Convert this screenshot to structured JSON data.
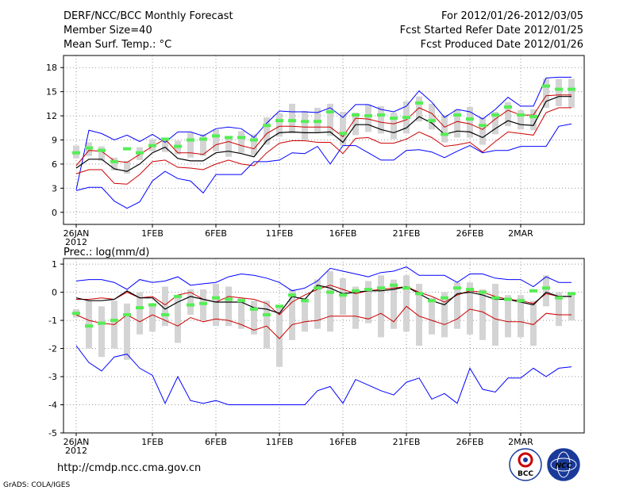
{
  "header": {
    "left_title": "DERF/NCC/BCC Monthly Forecast",
    "left_member": "Member Size=40",
    "left_var": "Mean Surf. Temp.: °C",
    "right_period": "For 2012/01/26-2012/03/05",
    "right_refer": "Fcst Started Refer Date 2012/01/25",
    "right_produced": "Fcst Produced Date 2012/01/26"
  },
  "precip_label": "Prec.: log(mm/d)",
  "footer": {
    "url": "http://cmdp.ncc.cma.gov.cn",
    "grads": "GrADS: COLA/IGES",
    "logo_bcc": "BCC",
    "logo_ncc": "NCC"
  },
  "x_axis": {
    "ticks": [
      "26JAN",
      "1FEB",
      "6FEB",
      "11FEB",
      "16FEB",
      "21FEB",
      "26FEB",
      "2MAR"
    ],
    "tick_days": [
      0,
      6,
      11,
      16,
      21,
      26,
      31,
      35
    ],
    "year_label": "2012",
    "n_days": 40
  },
  "colors": {
    "upper": "#0000ff",
    "lower_env": "#0000ff",
    "spread": "#cc0000",
    "mean": "#000000",
    "box": "#d4d4d4",
    "member": "#55ee55",
    "grid": "#999999"
  },
  "chart_data": [
    {
      "type": "line",
      "title": "Mean Surf. Temp.: °C",
      "ylim": [
        -1.5,
        19.5
      ],
      "yticks": [
        0,
        3,
        6,
        9,
        12,
        15,
        18
      ],
      "series": [
        {
          "name": "max",
          "values": [
            2.8,
            10.2,
            9.8,
            9.0,
            9.6,
            8.8,
            9.7,
            8.7,
            10.0,
            10.0,
            9.5,
            10.4,
            10.6,
            10.4,
            9.3,
            11.1,
            12.6,
            12.5,
            12.5,
            12.4,
            13.0,
            11.8,
            13.4,
            13.4,
            12.8,
            12.5,
            13.2,
            15.1,
            13.7,
            11.8,
            12.8,
            12.5,
            11.6,
            12.8,
            14.3,
            13.2,
            13.2,
            16.7,
            16.8,
            16.8
          ]
        },
        {
          "name": "upper_spread",
          "values": [
            5.8,
            7.7,
            7.6,
            6.4,
            6.2,
            7.2,
            8.2,
            9.1,
            7.4,
            7.4,
            7.2,
            8.4,
            8.8,
            8.3,
            7.9,
            9.8,
            10.7,
            10.7,
            10.6,
            10.6,
            10.6,
            9.4,
            11.7,
            11.6,
            11.2,
            11.0,
            11.5,
            13.0,
            12.3,
            10.6,
            11.3,
            11.0,
            10.3,
            11.6,
            12.7,
            12.1,
            12.1,
            14.5,
            14.6,
            14.6
          ]
        },
        {
          "name": "mean",
          "values": [
            5.5,
            6.6,
            6.6,
            5.4,
            5.1,
            6.0,
            7.4,
            8.1,
            6.7,
            6.4,
            6.4,
            7.4,
            7.6,
            7.3,
            6.9,
            8.9,
            9.9,
            10.0,
            9.9,
            9.9,
            10.0,
            8.7,
            10.9,
            10.9,
            10.3,
            9.9,
            10.5,
            11.9,
            11.1,
            9.7,
            10.1,
            10.0,
            9.3,
            10.4,
            11.4,
            10.9,
            10.8,
            13.8,
            14.4,
            14.4
          ]
        },
        {
          "name": "lower_spread",
          "values": [
            4.8,
            5.3,
            5.3,
            3.6,
            3.5,
            4.7,
            6.3,
            6.5,
            5.6,
            5.5,
            5.3,
            6.0,
            6.5,
            6.0,
            5.8,
            7.4,
            8.6,
            8.9,
            8.9,
            8.7,
            8.7,
            7.3,
            9.2,
            9.3,
            8.6,
            8.6,
            9.1,
            10.0,
            9.3,
            8.2,
            8.4,
            8.7,
            7.5,
            8.8,
            10.0,
            9.8,
            9.6,
            12.4,
            13.0,
            13.0
          ]
        },
        {
          "name": "min",
          "values": [
            2.7,
            3.1,
            3.1,
            1.4,
            0.5,
            1.3,
            3.9,
            5.1,
            4.2,
            3.9,
            2.4,
            4.7,
            4.7,
            4.7,
            6.3,
            6.3,
            6.5,
            7.4,
            7.3,
            8.2,
            6.0,
            8.3,
            8.3,
            7.4,
            6.5,
            6.5,
            7.7,
            7.8,
            7.5,
            6.8,
            7.6,
            8.3,
            7.4,
            7.7,
            7.7,
            8.2,
            8.2,
            8.2,
            10.7,
            11.0
          ]
        },
        {
          "name": "members",
          "values": [
            7.4,
            8.0,
            7.7,
            6.3,
            7.9,
            7.4,
            8.3,
            9.1,
            8.2,
            9.0,
            9.1,
            9.5,
            9.3,
            9.3,
            9.0,
            10.8,
            11.4,
            11.4,
            11.3,
            11.3,
            12.5,
            9.8,
            12.1,
            12.0,
            12.1,
            11.7,
            11.8,
            13.6,
            11.4,
            9.7,
            12.1,
            11.6,
            10.8,
            12.1,
            13.1,
            12.1,
            11.9,
            15.7,
            15.3,
            15.3
          ]
        }
      ],
      "box_ranges": [
        [
          6.7,
          8.3
        ],
        [
          7.0,
          8.7
        ],
        [
          6.4,
          8.2
        ],
        [
          5.2,
          6.8
        ],
        [
          4.8,
          6.4
        ],
        [
          6.5,
          8.1
        ],
        [
          7.6,
          9.1
        ],
        [
          7.5,
          9.3
        ],
        [
          7.2,
          8.9
        ],
        [
          6.8,
          9.9
        ],
        [
          7.0,
          9.7
        ],
        [
          7.6,
          10.3
        ],
        [
          6.9,
          9.3
        ],
        [
          7.4,
          10.1
        ],
        [
          7.1,
          9.7
        ],
        [
          8.4,
          11.8
        ],
        [
          9.4,
          12.3
        ],
        [
          9.8,
          13.5
        ],
        [
          9.0,
          12.6
        ],
        [
          10.0,
          13.0
        ],
        [
          9.5,
          13.5
        ],
        [
          8.3,
          12.5
        ],
        [
          9.6,
          12.4
        ],
        [
          10.0,
          13.4
        ],
        [
          9.8,
          13.2
        ],
        [
          9.1,
          12.4
        ],
        [
          9.8,
          13.8
        ],
        [
          11.3,
          14.4
        ],
        [
          10.3,
          13.5
        ],
        [
          8.7,
          12.1
        ],
        [
          9.3,
          12.8
        ],
        [
          9.3,
          13.1
        ],
        [
          8.4,
          11.8
        ],
        [
          9.7,
          12.5
        ],
        [
          10.7,
          13.7
        ],
        [
          10.3,
          12.7
        ],
        [
          10.2,
          12.8
        ],
        [
          13.0,
          16.6
        ],
        [
          13.2,
          16.6
        ],
        [
          13.0,
          16.6
        ]
      ]
    },
    {
      "type": "line",
      "title": "Prec.: log(mm/d)",
      "ylim": [
        -5,
        1.2
      ],
      "yticks": [
        -5,
        -4,
        -3,
        -2,
        -1,
        0,
        1
      ],
      "series": [
        {
          "name": "max",
          "values": [
            0.4,
            0.45,
            0.45,
            0.35,
            0.1,
            0.45,
            0.35,
            0.4,
            0.55,
            0.25,
            0.3,
            0.35,
            0.55,
            0.65,
            0.6,
            0.5,
            0.35,
            0.05,
            0.15,
            0.4,
            0.85,
            0.75,
            0.65,
            0.55,
            0.7,
            0.75,
            0.9,
            0.6,
            0.6,
            0.6,
            0.35,
            0.65,
            0.65,
            0.5,
            0.45,
            0.45,
            0.2,
            0.55,
            0.35,
            0.35
          ]
        },
        {
          "name": "upper_spread",
          "values": [
            -0.25,
            -0.25,
            -0.2,
            -0.25,
            0.0,
            -0.2,
            -0.15,
            -0.45,
            -0.1,
            0.0,
            -0.25,
            -0.35,
            -0.15,
            -0.2,
            -0.25,
            -0.4,
            -0.8,
            -0.35,
            -0.1,
            0.1,
            0.25,
            0.1,
            -0.05,
            0.05,
            0.1,
            0.15,
            0.2,
            0.0,
            -0.15,
            -0.35,
            -0.1,
            0.05,
            0.0,
            -0.15,
            -0.25,
            -0.3,
            -0.4,
            -0.05,
            -0.15,
            -0.15
          ]
        },
        {
          "name": "mean",
          "values": [
            -0.2,
            -0.3,
            -0.3,
            -0.25,
            0.05,
            -0.2,
            -0.2,
            -0.6,
            -0.35,
            -0.15,
            -0.25,
            -0.35,
            -0.35,
            -0.35,
            -0.55,
            -0.6,
            -0.75,
            -0.15,
            -0.25,
            0.25,
            0.15,
            -0.05,
            0.0,
            0.05,
            0.05,
            0.1,
            0.2,
            -0.05,
            -0.3,
            -0.45,
            -0.05,
            0.0,
            -0.1,
            -0.25,
            -0.25,
            -0.35,
            -0.45,
            0.0,
            -0.15,
            -0.15
          ]
        },
        {
          "name": "lower_spread",
          "values": [
            -0.8,
            -1.0,
            -1.1,
            -1.15,
            -0.8,
            -1.05,
            -0.8,
            -1.0,
            -1.2,
            -0.9,
            -1.05,
            -0.95,
            -1.0,
            -1.15,
            -1.35,
            -1.2,
            -1.65,
            -1.15,
            -1.05,
            -1.0,
            -0.85,
            -0.85,
            -0.85,
            -0.95,
            -0.75,
            -1.05,
            -0.5,
            -0.85,
            -1.0,
            -1.15,
            -0.95,
            -0.6,
            -0.7,
            -0.95,
            -1.05,
            -1.05,
            -1.15,
            -0.75,
            -0.8,
            -0.8
          ]
        },
        {
          "name": "min",
          "values": [
            -1.9,
            -2.5,
            -2.8,
            -2.3,
            -2.2,
            -2.7,
            -2.95,
            -3.95,
            -3.0,
            -3.85,
            -3.95,
            -3.85,
            -4.0,
            -4.0,
            -4.0,
            -4.0,
            -4.0,
            -4.0,
            -4.0,
            -3.5,
            -3.35,
            -3.95,
            -3.1,
            -3.3,
            -3.5,
            -3.65,
            -3.2,
            -3.05,
            -3.8,
            -3.6,
            -3.95,
            -2.7,
            -3.45,
            -3.55,
            -3.05,
            -3.05,
            -2.7,
            -3.0,
            -2.7,
            -2.65
          ]
        },
        {
          "name": "members",
          "values": [
            -0.75,
            -1.2,
            -1.1,
            -1.0,
            -0.8,
            -0.55,
            -0.45,
            -0.8,
            -0.15,
            -0.45,
            -0.4,
            -0.2,
            -0.25,
            -0.3,
            -0.6,
            -0.8,
            -0.5,
            -0.1,
            -0.3,
            0.15,
            0.0,
            -0.1,
            0.05,
            0.1,
            0.15,
            0.25,
            0.15,
            -0.05,
            -0.3,
            -0.2,
            0.15,
            0.1,
            0.0,
            -0.2,
            -0.25,
            -0.3,
            0.05,
            0.15,
            -0.2,
            -0.05
          ]
        }
      ],
      "box_ranges": [
        [
          -0.9,
          -0.6
        ],
        [
          -2.0,
          -0.3
        ],
        [
          -2.3,
          -0.5
        ],
        [
          -2.0,
          -0.3
        ],
        [
          -2.4,
          -0.4
        ],
        [
          -1.5,
          0.0
        ],
        [
          -1.4,
          -0.4
        ],
        [
          -1.2,
          0.2
        ],
        [
          -1.8,
          -0.1
        ],
        [
          -0.8,
          0.1
        ],
        [
          -1.0,
          0.1
        ],
        [
          -1.2,
          0.3
        ],
        [
          -1.2,
          0.2
        ],
        [
          -1.3,
          -0.2
        ],
        [
          -1.5,
          -0.3
        ],
        [
          -2.0,
          -0.3
        ],
        [
          -2.65,
          -0.5
        ],
        [
          -1.7,
          0.1
        ],
        [
          -1.4,
          -0.2
        ],
        [
          -1.3,
          0.45
        ],
        [
          -1.4,
          0.75
        ],
        [
          -0.8,
          0.5
        ],
        [
          -1.3,
          0.2
        ],
        [
          -1.1,
          0.4
        ],
        [
          -1.6,
          0.6
        ],
        [
          -1.3,
          0.45
        ],
        [
          -1.4,
          0.6
        ],
        [
          -1.9,
          0.3
        ],
        [
          -1.5,
          -0.2
        ],
        [
          -1.6,
          0.0
        ],
        [
          -1.3,
          0.35
        ],
        [
          -1.5,
          0.35
        ],
        [
          -1.7,
          0.1
        ],
        [
          -1.9,
          0.3
        ],
        [
          -1.6,
          -0.1
        ],
        [
          -1.6,
          -0.1
        ],
        [
          -1.9,
          -0.3
        ],
        [
          -0.5,
          0.6
        ],
        [
          -1.2,
          0.0
        ],
        [
          -1.0,
          0.0
        ]
      ]
    }
  ]
}
